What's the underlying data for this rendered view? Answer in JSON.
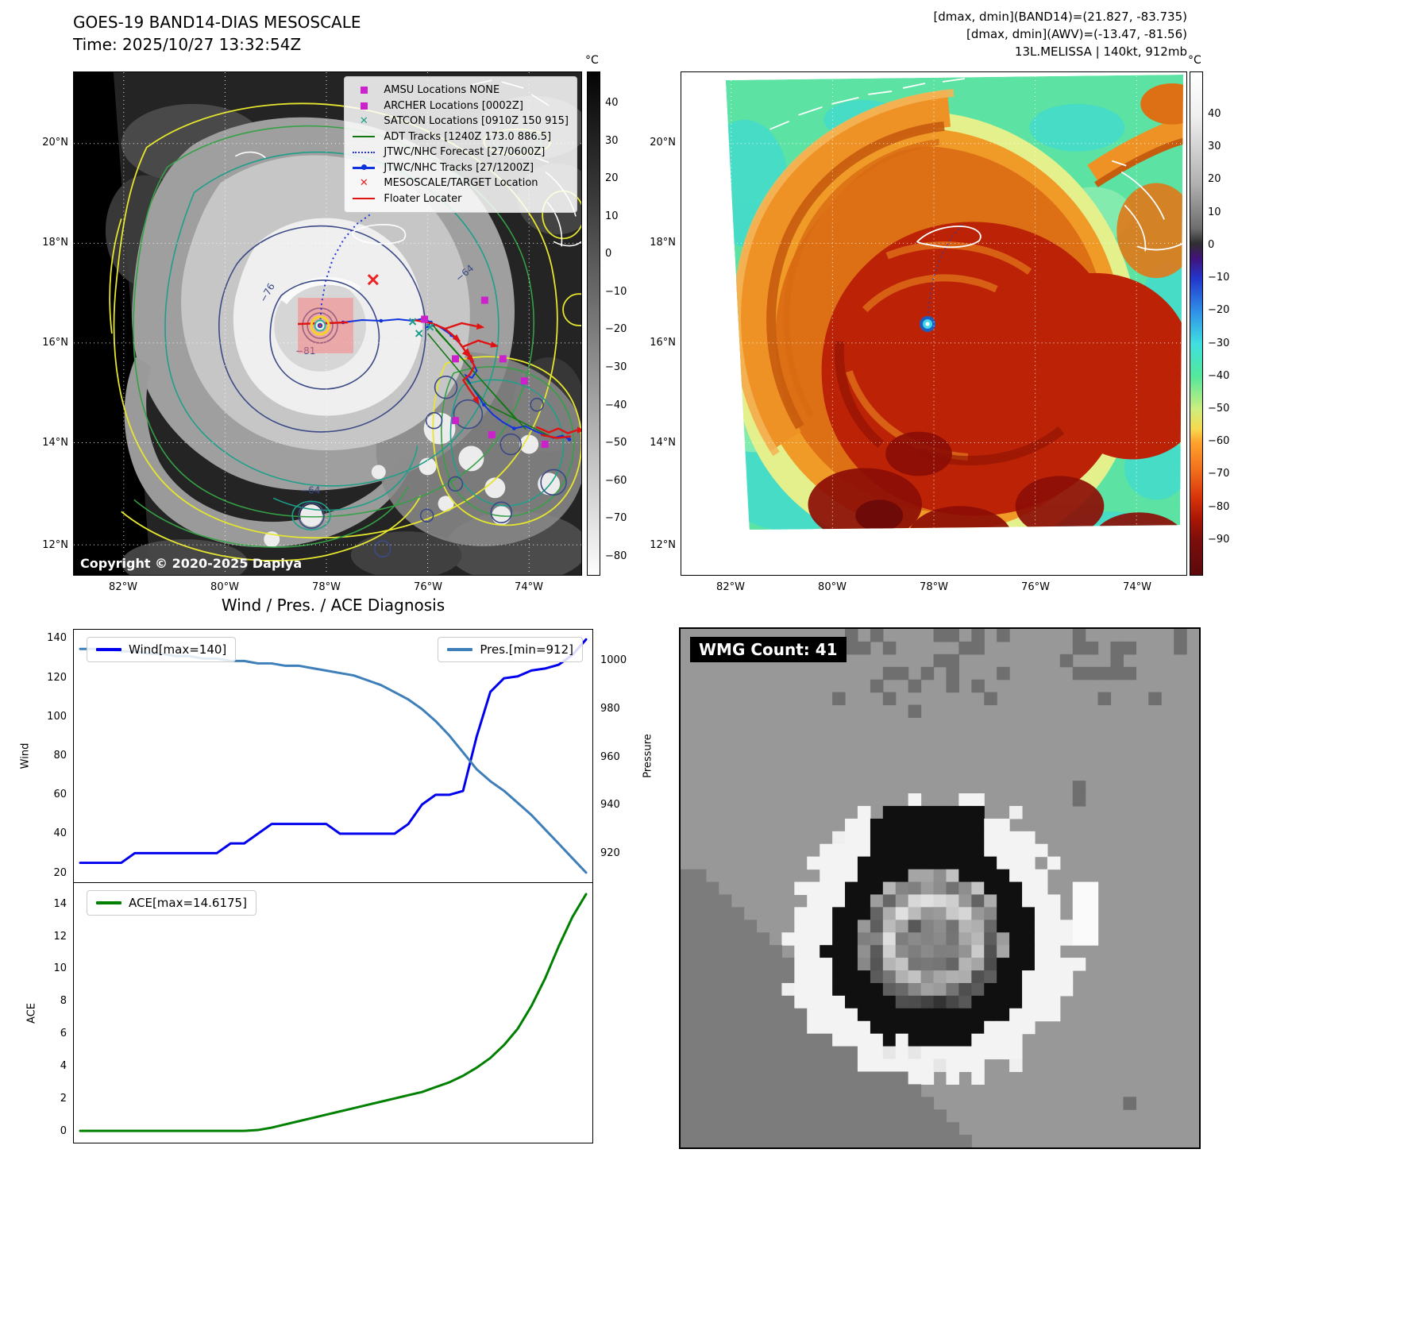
{
  "colors": {
    "wind_line": "#0000ee",
    "pressure_line": "#3e7fba",
    "ace_line": "#008000",
    "forecast_track_blue": "#2233dd",
    "best_track_blue": "#1133dd",
    "floater_red": "#e11212",
    "adt_green": "#117711",
    "amsu_magenta": "#cc22cc",
    "satcon_teal": "#1f9e8a",
    "target_red": "#ee2222",
    "mesoscale_box_pink": "#ff7a7a"
  },
  "panel_tl": {
    "title_line1": "GOES-19 BAND14-DIAS MESOSCALE",
    "title_line2": "Time: 2025/10/27 13:32:54Z",
    "copyright": "Copyright © 2020-2025 Dapiya",
    "lat_ticks": [
      "20°N",
      "18°N",
      "16°N",
      "14°N",
      "12°N"
    ],
    "lon_ticks": [
      "82°W",
      "80°W",
      "78°W",
      "76°W",
      "74°W"
    ],
    "contour_labels": [
      "−64",
      "−76",
      "−81",
      "−64"
    ],
    "colorbar": {
      "unit": "°C",
      "ticks": [
        "40",
        "30",
        "20",
        "10",
        "0",
        "−10",
        "−20",
        "−30",
        "−40",
        "−50",
        "−60",
        "−70",
        "−80"
      ]
    },
    "legend": [
      {
        "marker": "square",
        "color": "#cc22cc",
        "label": "AMSU Locations NONE"
      },
      {
        "marker": "square",
        "color": "#cc22cc",
        "label": "ARCHER Locations [0002Z]"
      },
      {
        "marker": "x",
        "color": "#1f9e8a",
        "label": "SATCON Locations [0910Z 150 915]"
      },
      {
        "marker": "line",
        "color": "#117711",
        "label": "ADT Tracks [1240Z 173.0 886.5]"
      },
      {
        "marker": "dotted",
        "color": "#2233dd",
        "label": "JTWC/NHC Forecast [27/0600Z]"
      },
      {
        "marker": "line-dot",
        "color": "#1133dd",
        "label": "JTWC/NHC Tracks [27/1200Z]"
      },
      {
        "marker": "x",
        "color": "#ee2222",
        "label": "MESOSCALE/TARGET Location"
      },
      {
        "marker": "line",
        "color": "#e11212",
        "label": "Floater Locater"
      }
    ]
  },
  "panel_tr": {
    "header_line1": "[dmax, dmin](BAND14)=(21.827, -83.735)",
    "header_line2": "[dmax, dmin](AWV)=(-13.47, -81.56)",
    "header_line3": "13L.MELISSA | 140kt, 912mb",
    "lat_ticks": [
      "20°N",
      "18°N",
      "16°N",
      "14°N",
      "12°N"
    ],
    "lon_ticks": [
      "82°W",
      "80°W",
      "78°W",
      "76°W",
      "74°W"
    ],
    "colorbar": {
      "unit": "°C",
      "ticks": [
        "40",
        "30",
        "20",
        "10",
        "0",
        "−10",
        "−20",
        "−30",
        "−40",
        "−50",
        "−60",
        "−70",
        "−80",
        "−90"
      ]
    }
  },
  "panel_br": {
    "wmg_label": "WMG Count: 41"
  },
  "chart_data": [
    {
      "type": "line",
      "title": "Wind / Pres. / ACE Diagnosis",
      "ylabel_left": "Wind",
      "ylabel_right": "Pressure",
      "ylim_left": [
        15,
        145
      ],
      "yticks_left": [
        20,
        40,
        60,
        80,
        100,
        120,
        140
      ],
      "ylim_right": [
        908,
        1013
      ],
      "yticks_right": [
        920,
        940,
        960,
        980,
        1000
      ],
      "legend_position": "upper-left-and-upper-right",
      "grid": false,
      "series": [
        {
          "name": "Wind[max=140]",
          "axis": "left",
          "color": "#0000ee",
          "values": [
            25,
            25,
            25,
            25,
            30,
            30,
            30,
            30,
            30,
            30,
            30,
            35,
            35,
            40,
            45,
            45,
            45,
            45,
            45,
            40,
            40,
            40,
            40,
            40,
            45,
            55,
            60,
            60,
            62,
            90,
            113,
            120,
            121,
            124,
            125,
            127,
            132,
            140
          ]
        },
        {
          "name": "Pres.[min=912]",
          "axis": "right",
          "color": "#3e7fba",
          "values": [
            1005,
            1005,
            1005,
            1004,
            1004,
            1003,
            1003,
            1002,
            1002,
            1001,
            1001,
            1000,
            1000,
            999,
            999,
            998,
            998,
            997,
            996,
            995,
            994,
            992,
            990,
            987,
            984,
            980,
            975,
            969,
            962,
            955,
            950,
            946,
            941,
            936,
            930,
            924,
            918,
            912
          ]
        }
      ]
    },
    {
      "type": "line",
      "title": "",
      "ylabel_left": "ACE",
      "ylim_left": [
        -0.73,
        15.3
      ],
      "yticks_left": [
        0,
        2,
        4,
        6,
        8,
        10,
        12,
        14
      ],
      "grid": false,
      "series": [
        {
          "name": "ACE[max=14.6175]",
          "axis": "left",
          "color": "#008000",
          "values": [
            0,
            0,
            0,
            0,
            0,
            0,
            0,
            0,
            0,
            0,
            0,
            0,
            0,
            0.05,
            0.2,
            0.4,
            0.6,
            0.8,
            1.0,
            1.2,
            1.4,
            1.6,
            1.8,
            2.0,
            2.2,
            2.4,
            2.7,
            3.0,
            3.4,
            3.9,
            4.5,
            5.3,
            6.3,
            7.7,
            9.4,
            11.4,
            13.2,
            14.6175
          ]
        }
      ]
    }
  ]
}
